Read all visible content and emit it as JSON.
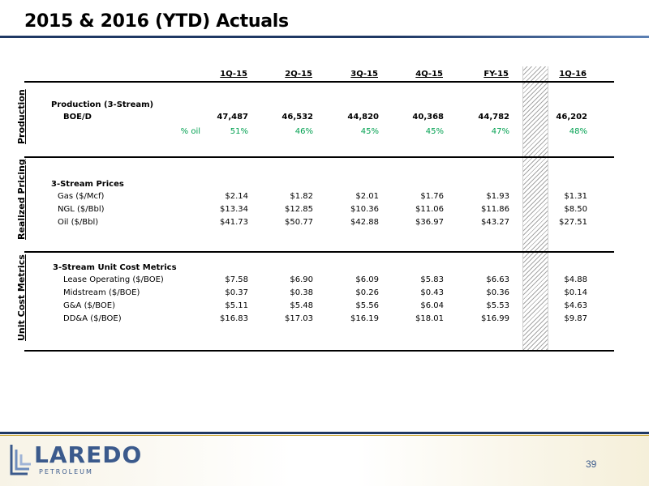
{
  "title": "2015 & 2016 (YTD) Actuals",
  "columns": [
    "1Q-15",
    "2Q-15",
    "3Q-15",
    "4Q-15",
    "FY-15",
    "1Q-16"
  ],
  "sections": {
    "production": {
      "label": "Production",
      "group_title": "Production (3-Stream)",
      "boe_label": "BOE/D",
      "boe_values": [
        "47,487",
        "46,532",
        "44,820",
        "40,368",
        "44,782",
        "46,202"
      ],
      "oil_label": "% oil",
      "oil_values": [
        "51%",
        "46%",
        "45%",
        "45%",
        "47%",
        "48%"
      ]
    },
    "pricing": {
      "label": "Realized Pricing",
      "group_title": "3-Stream Prices",
      "rows": [
        {
          "label": "Gas ($/Mcf)",
          "values": [
            "$2.14",
            "$1.82",
            "$2.01",
            "$1.76",
            "$1.93",
            "$1.31"
          ]
        },
        {
          "label": "NGL ($/Bbl)",
          "values": [
            "$13.34",
            "$12.85",
            "$10.36",
            "$11.06",
            "$11.86",
            "$8.50"
          ]
        },
        {
          "label": "Oil ($/Bbl)",
          "values": [
            "$41.73",
            "$50.77",
            "$42.88",
            "$36.97",
            "$43.27",
            "$27.51"
          ]
        }
      ]
    },
    "costs": {
      "label": "Unit Cost Metrics",
      "group_title": "3-Stream Unit Cost Metrics",
      "rows": [
        {
          "label": "Lease Operating ($/BOE)",
          "values": [
            "$7.58",
            "$6.90",
            "$6.09",
            "$5.83",
            "$6.63",
            "$4.88"
          ]
        },
        {
          "label": "Midstream ($/BOE)",
          "values": [
            "$0.37",
            "$0.38",
            "$0.26",
            "$0.43",
            "$0.36",
            "$0.14"
          ]
        },
        {
          "label": "G&A ($/BOE)",
          "values": [
            "$5.11",
            "$5.48",
            "$5.56",
            "$6.04",
            "$5.53",
            "$4.63"
          ]
        },
        {
          "label": "DD&A ($/BOE)",
          "values": [
            "$16.83",
            "$17.03",
            "$16.19",
            "$18.01",
            "$16.99",
            "$9.87"
          ]
        }
      ]
    }
  },
  "footer": {
    "logo_word": "LAREDO",
    "logo_sub": "PETROLEUM",
    "page_number": "39"
  },
  "colors": {
    "accent_navy": "#1f3864",
    "accent_gold": "#c9a227",
    "oil_green": "#00a050",
    "logo_blue": "#3b5a8c"
  }
}
